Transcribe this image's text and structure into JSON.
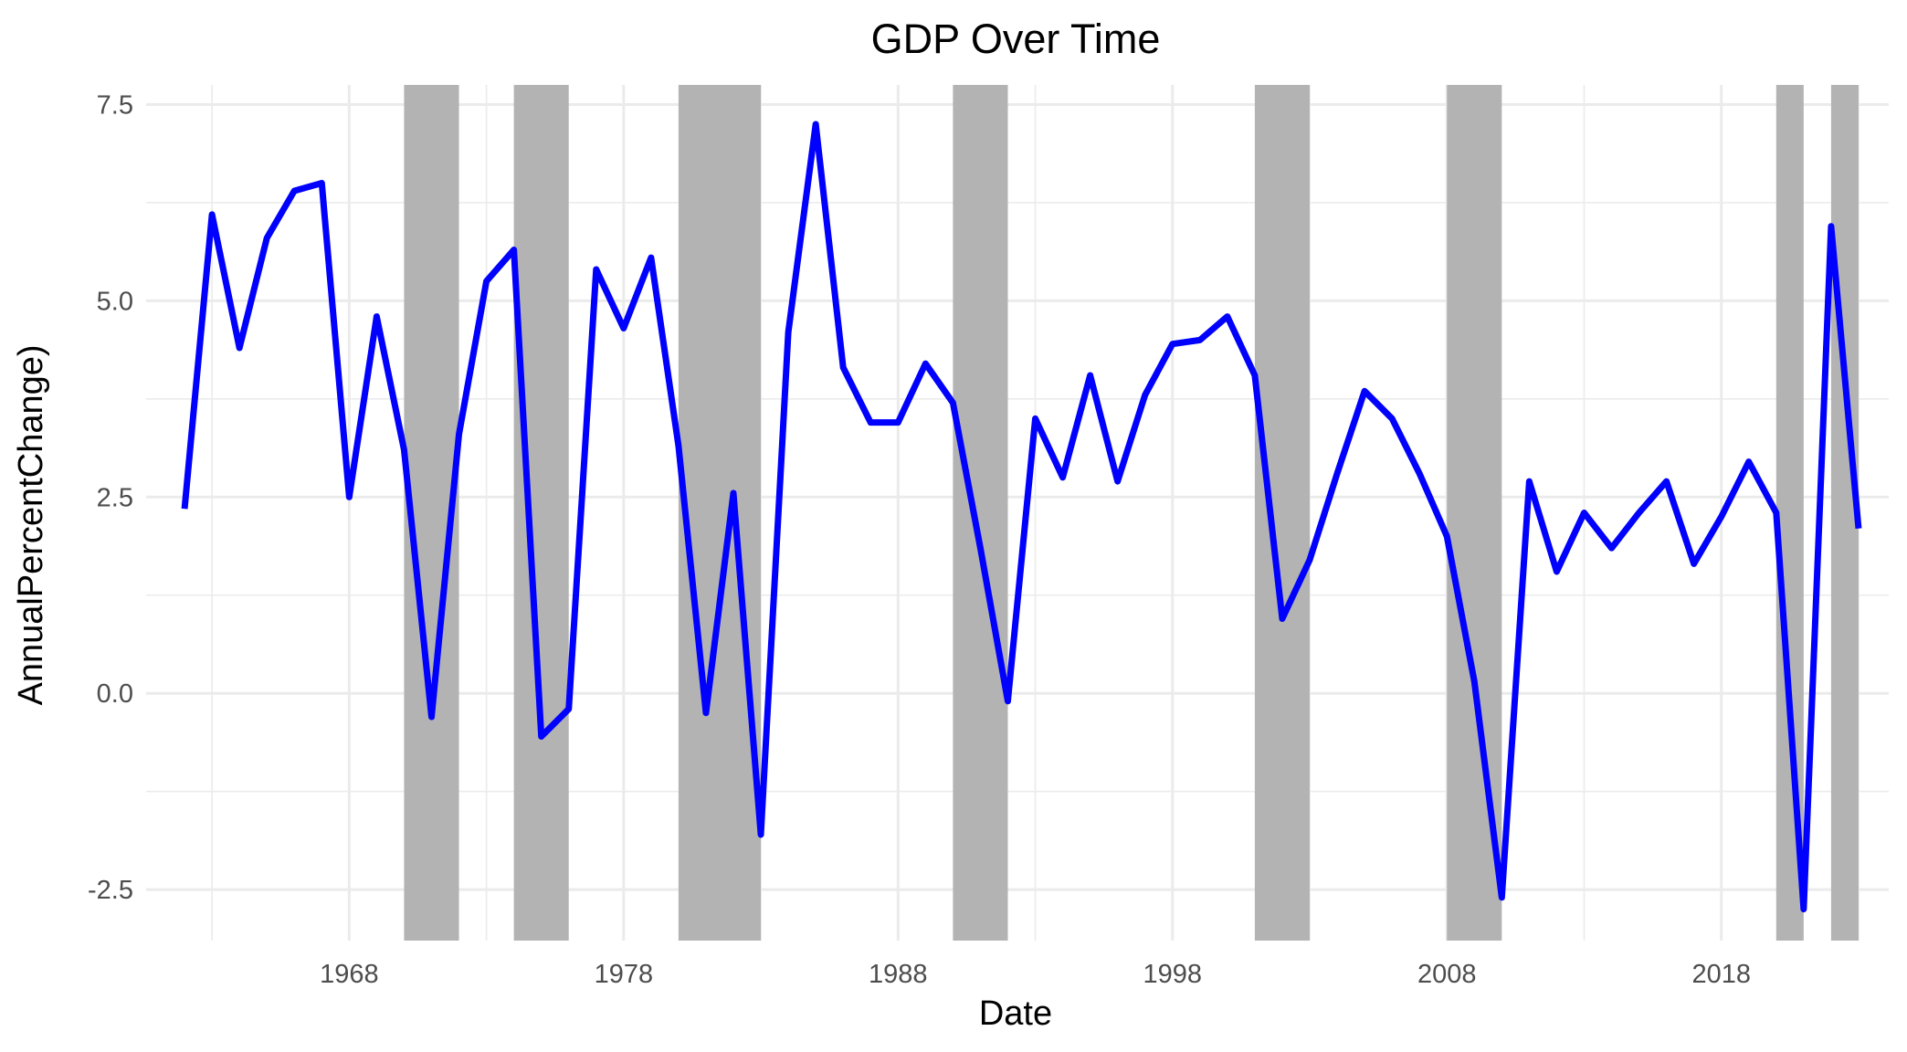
{
  "chart_data": {
    "type": "line",
    "title": "GDP Over Time",
    "xlabel": "Date",
    "ylabel": "AnnualPercentChange)",
    "xlim": [
      1960.6,
      2024.1
    ],
    "ylim": [
      -3.15,
      7.75
    ],
    "x_ticks": [
      1968,
      1978,
      1988,
      1998,
      2008,
      2018
    ],
    "x_tick_labels": [
      "1968",
      "1978",
      "1988",
      "1998",
      "2008",
      "2018"
    ],
    "y_ticks": [
      -2.5,
      0.0,
      2.5,
      5.0,
      7.5
    ],
    "y_tick_labels": [
      "-2.5",
      "0.0",
      "2.5",
      "5.0",
      "7.5"
    ],
    "grid": true,
    "line_color": "#0000ff",
    "recession_color": "#b3b3b3",
    "recessions": [
      [
        1970,
        1972
      ],
      [
        1974,
        1976
      ],
      [
        1980,
        1983
      ],
      [
        1990,
        1992
      ],
      [
        2001,
        2003
      ],
      [
        2008,
        2010
      ],
      [
        2020,
        2021
      ],
      [
        2022,
        2023
      ]
    ],
    "series": [
      {
        "x": [
          1962,
          1963,
          1964,
          1965,
          1966,
          1967,
          1968,
          1969,
          1970,
          1971,
          1972,
          1973,
          1974,
          1975,
          1976,
          1977,
          1978,
          1979,
          1980,
          1981,
          1982,
          1983,
          1984,
          1985,
          1986,
          1987,
          1988,
          1989,
          1990,
          1991,
          1992,
          1993,
          1994,
          1995,
          1996,
          1997,
          1998,
          1999,
          2000,
          2001,
          2002,
          2003,
          2004,
          2005,
          2006,
          2007,
          2008,
          2009,
          2010,
          2011,
          2012,
          2013,
          2014,
          2015,
          2016,
          2017,
          2018,
          2019,
          2020,
          2021,
          2022,
          2023
        ],
        "values": [
          2.35,
          6.1,
          4.4,
          5.8,
          6.4,
          6.5,
          2.5,
          4.8,
          3.1,
          -0.3,
          3.3,
          5.25,
          5.65,
          -0.55,
          -0.2,
          5.4,
          4.65,
          5.55,
          3.15,
          -0.25,
          2.55,
          -1.8,
          4.6,
          7.25,
          4.15,
          3.45,
          3.45,
          4.2,
          3.7,
          1.85,
          -0.1,
          3.5,
          2.75,
          4.05,
          2.7,
          3.8,
          4.45,
          4.5,
          4.8,
          4.05,
          0.95,
          1.7,
          2.8,
          3.85,
          3.5,
          2.8,
          2.0,
          0.15,
          -2.6,
          2.7,
          1.55,
          2.3,
          1.85,
          2.3,
          2.7,
          1.65,
          2.25,
          2.95,
          2.3,
          -2.75,
          5.95,
          2.1
        ]
      }
    ]
  }
}
